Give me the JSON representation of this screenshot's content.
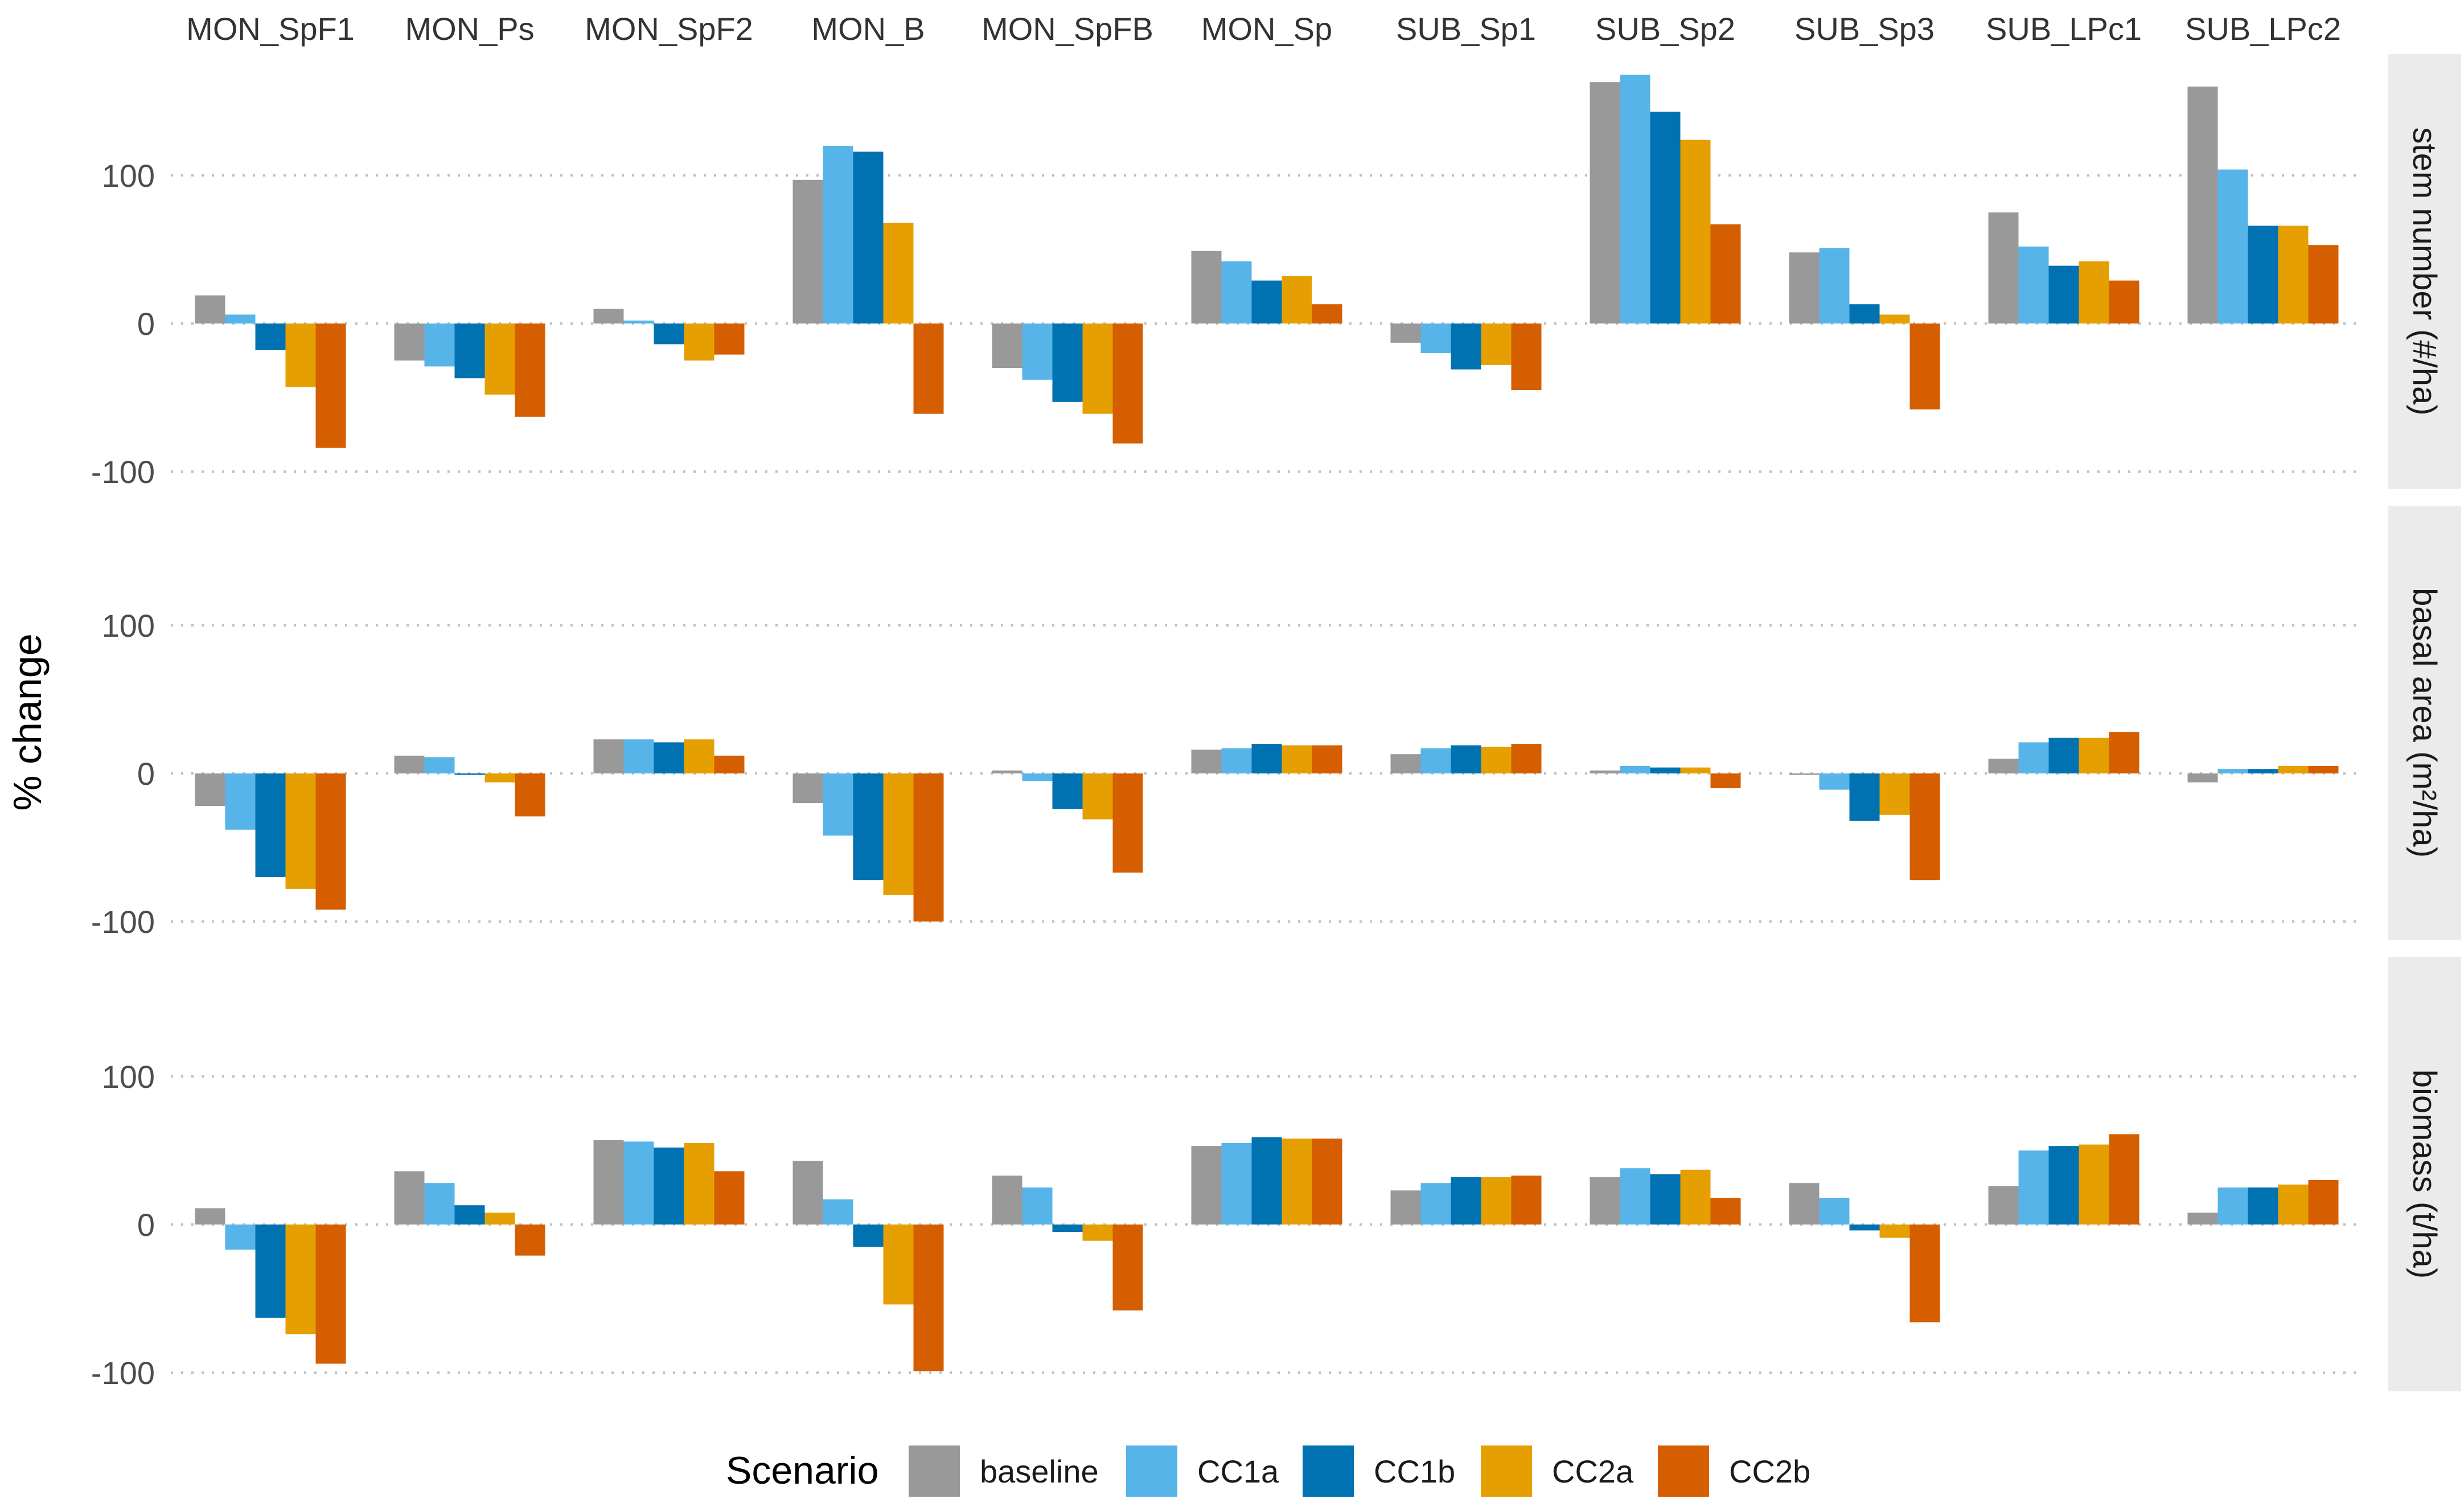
{
  "chart_data": {
    "type": "bar",
    "ylabel": "% change",
    "ylim": [
      -115,
      180
    ],
    "yticks": [
      -100,
      0,
      100
    ],
    "grid": true,
    "legend_position": "bottom",
    "categories": [
      "MON_SpF1",
      "MON_Ps",
      "MON_SpF2",
      "MON_B",
      "MON_SpFB",
      "MON_Sp",
      "SUB_Sp1",
      "SUB_Sp2",
      "SUB_Sp3",
      "SUB_LPc1",
      "SUB_LPc2"
    ],
    "legend": {
      "title": "Scenario",
      "entries": [
        {
          "name": "baseline",
          "color": "#999999"
        },
        {
          "name": "CC1a",
          "color": "#56B4E9"
        },
        {
          "name": "CC1b",
          "color": "#0072B2"
        },
        {
          "name": "CC2a",
          "color": "#E69F00"
        },
        {
          "name": "CC2b",
          "color": "#D55E00"
        }
      ]
    },
    "panels": [
      {
        "strip_label": "stem number (#/ha)",
        "values": {
          "baseline": [
            19,
            -25,
            10,
            97,
            -30,
            49,
            -13,
            163,
            48,
            75,
            160
          ],
          "CC1a": [
            6,
            -29,
            2,
            120,
            -38,
            42,
            -20,
            168,
            51,
            52,
            104
          ],
          "CC1b": [
            -18,
            -37,
            -14,
            116,
            -53,
            29,
            -31,
            143,
            13,
            39,
            66
          ],
          "CC2a": [
            -43,
            -48,
            -25,
            68,
            -61,
            32,
            -28,
            124,
            6,
            42,
            66
          ],
          "CC2b": [
            -84,
            -63,
            -21,
            -61,
            -81,
            13,
            -45,
            67,
            -58,
            29,
            53
          ]
        }
      },
      {
        "strip_label": "basal area (m²/ha)",
        "values": {
          "baseline": [
            -22,
            12,
            23,
            -20,
            2,
            16,
            13,
            2,
            -1,
            10,
            -6
          ],
          "CC1a": [
            -38,
            11,
            23,
            -42,
            -5,
            17,
            17,
            5,
            -11,
            21,
            3
          ],
          "CC1b": [
            -70,
            -1,
            21,
            -72,
            -24,
            20,
            19,
            4,
            -32,
            24,
            3
          ],
          "CC2a": [
            -78,
            -6,
            23,
            -82,
            -31,
            19,
            18,
            4,
            -28,
            24,
            5
          ],
          "CC2b": [
            -92,
            -29,
            12,
            -100,
            -67,
            19,
            20,
            -10,
            -72,
            28,
            5
          ]
        }
      },
      {
        "strip_label": "biomass (t/ha)",
        "values": {
          "baseline": [
            11,
            36,
            57,
            43,
            33,
            53,
            23,
            32,
            28,
            26,
            8
          ],
          "CC1a": [
            -17,
            28,
            56,
            17,
            25,
            55,
            28,
            38,
            18,
            50,
            25
          ],
          "CC1b": [
            -63,
            13,
            52,
            -15,
            -5,
            59,
            32,
            34,
            -4,
            53,
            25
          ],
          "CC2a": [
            -74,
            8,
            55,
            -54,
            -11,
            58,
            32,
            37,
            -9,
            54,
            27
          ],
          "CC2b": [
            -94,
            -21,
            36,
            -99,
            -58,
            58,
            33,
            18,
            -66,
            61,
            30
          ]
        }
      }
    ]
  }
}
